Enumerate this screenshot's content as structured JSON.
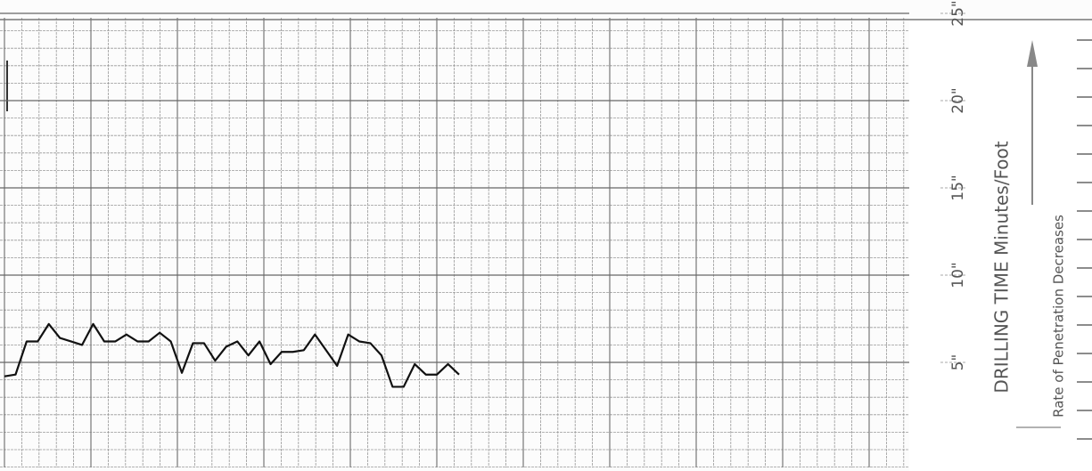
{
  "chart_data": {
    "type": "line",
    "y_label": "DRILLING TIME Minutes/Foot",
    "note": "Rate of Penetration Decreases",
    "ylim": [
      0,
      25
    ],
    "yticks": [
      {
        "value": 5,
        "label": "5\""
      },
      {
        "value": 10,
        "label": "10\""
      },
      {
        "value": 15,
        "label": "15\""
      },
      {
        "value": 20,
        "label": "20\""
      },
      {
        "value": 25,
        "label": "25\""
      }
    ],
    "grid": true,
    "series": [
      {
        "name": "Drilling time",
        "color": "#111111",
        "values": [
          4.2,
          4.3,
          6.2,
          6.2,
          7.2,
          6.4,
          6.2,
          6.0,
          7.2,
          6.2,
          6.2,
          6.6,
          6.2,
          6.2,
          6.7,
          6.2,
          4.4,
          6.1,
          6.1,
          5.1,
          5.9,
          6.2,
          5.4,
          6.2,
          4.9,
          5.6,
          5.6,
          5.7,
          6.6,
          5.7,
          4.8,
          6.6,
          6.2,
          6.1,
          5.4,
          3.6,
          3.6,
          4.9,
          4.3,
          4.3,
          4.9,
          4.3
        ]
      }
    ]
  }
}
